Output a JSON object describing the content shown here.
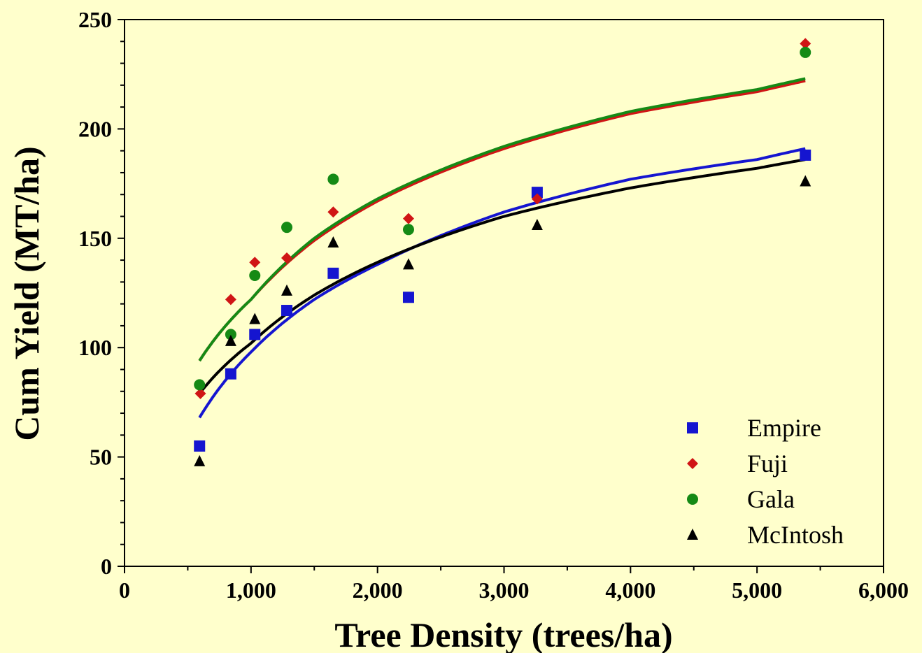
{
  "chart_data": {
    "type": "scatter",
    "title": "",
    "xlabel": "Tree Density (trees/ha)",
    "ylabel": "Cum Yield (MT/ha)",
    "xlim": [
      0,
      6000
    ],
    "ylim": [
      0,
      250
    ],
    "x_ticks": [
      0,
      1000,
      2000,
      3000,
      4000,
      5000,
      6000
    ],
    "x_tick_labels": [
      "0",
      "1,000",
      "2,000",
      "3,000",
      "4,000",
      "5,000",
      "6,000"
    ],
    "y_ticks": [
      0,
      50,
      100,
      150,
      200,
      250
    ],
    "y_tick_labels": [
      "0",
      "50",
      "100",
      "150",
      "200",
      "250"
    ],
    "grid": false,
    "legend_position": "bottom-right",
    "series": [
      {
        "name": "Empire",
        "marker": "square",
        "color": "#1515D0",
        "points": [
          [
            593,
            55
          ],
          [
            840,
            88
          ],
          [
            1030,
            106
          ],
          [
            1283,
            117
          ],
          [
            1650,
            134
          ],
          [
            2245,
            123
          ],
          [
            3262,
            171
          ],
          [
            5382,
            188
          ]
        ],
        "fit": [
          [
            593,
            68
          ],
          [
            1000,
            98
          ],
          [
            1500,
            122
          ],
          [
            2000,
            138
          ],
          [
            3000,
            162
          ],
          [
            4000,
            177
          ],
          [
            5000,
            186
          ],
          [
            5382,
            191
          ]
        ]
      },
      {
        "name": "Fuji",
        "marker": "diamond",
        "color": "#D01515",
        "points": [
          [
            600,
            79
          ],
          [
            840,
            122
          ],
          [
            1030,
            139
          ],
          [
            1283,
            141
          ],
          [
            1650,
            162
          ],
          [
            2245,
            159
          ],
          [
            3262,
            168
          ],
          [
            5382,
            239
          ]
        ],
        "fit": [
          [
            593,
            94
          ],
          [
            1000,
            122
          ],
          [
            1500,
            149
          ],
          [
            2000,
            167
          ],
          [
            3000,
            191
          ],
          [
            4000,
            207
          ],
          [
            5000,
            217
          ],
          [
            5382,
            222
          ]
        ]
      },
      {
        "name": "Gala",
        "marker": "circle",
        "color": "#158A15",
        "points": [
          [
            593,
            83
          ],
          [
            840,
            106
          ],
          [
            1030,
            133
          ],
          [
            1283,
            155
          ],
          [
            1650,
            177
          ],
          [
            2245,
            154
          ],
          [
            5382,
            235
          ]
        ],
        "fit": [
          [
            593,
            94
          ],
          [
            1000,
            122
          ],
          [
            1500,
            150
          ],
          [
            2000,
            168
          ],
          [
            3000,
            192
          ],
          [
            4000,
            208
          ],
          [
            5000,
            218
          ],
          [
            5382,
            223
          ]
        ]
      },
      {
        "name": "McIntosh",
        "marker": "triangle",
        "color": "#000000",
        "points": [
          [
            593,
            48
          ],
          [
            840,
            103
          ],
          [
            1030,
            113
          ],
          [
            1283,
            126
          ],
          [
            1650,
            148
          ],
          [
            2245,
            138
          ],
          [
            3262,
            156
          ],
          [
            5382,
            176
          ]
        ],
        "fit": [
          [
            593,
            79
          ],
          [
            1000,
            102
          ],
          [
            1500,
            124
          ],
          [
            2000,
            139
          ],
          [
            3000,
            160
          ],
          [
            4000,
            173
          ],
          [
            5000,
            182
          ],
          [
            5382,
            186
          ]
        ]
      }
    ]
  }
}
